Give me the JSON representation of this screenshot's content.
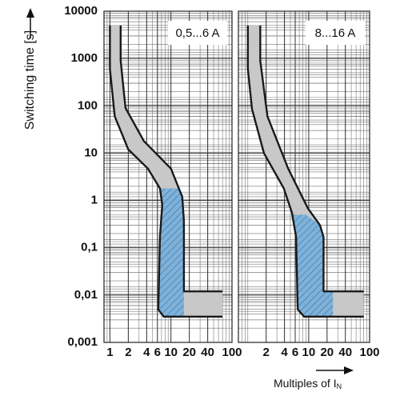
{
  "ylabel": "Switching time [s]",
  "xlabel": "Multiples of I",
  "xlabel_subscript": "N",
  "chart_data": [
    {
      "type": "line",
      "label": "0,5...6 A",
      "xscale": "log",
      "yscale": "log",
      "grid": true,
      "xlim": [
        0.8,
        100
      ],
      "xticks": [
        1,
        2,
        4,
        6,
        10,
        20,
        40,
        100
      ],
      "ylim": [
        0.001,
        10000
      ],
      "yticks": [
        10000,
        1000,
        100,
        10,
        1,
        {
          "value": 0.1,
          "label": "0,1"
        },
        {
          "value": 0.01,
          "label": "0,01"
        },
        {
          "value": 0.001,
          "label": "0,001"
        }
      ],
      "band_color": "#c8c8c8",
      "zone_color": "#7fb2da",
      "line_color": "#1a1a1a",
      "lower": {
        "x": [
          1,
          1,
          1.2,
          2,
          4.2,
          6.6,
          7.2,
          6.6,
          6.2,
          7.6,
          70
        ],
        "y": [
          5000,
          600,
          60,
          12,
          4.7,
          1.8,
          0.81,
          0.17,
          0.005,
          0.0035,
          0.0035
        ]
      },
      "upper": {
        "x": [
          1.5,
          1.5,
          1.8,
          3.6,
          10,
          15.3,
          16.3,
          16.3,
          70
        ],
        "y": [
          5000,
          900,
          90,
          18,
          4.7,
          1.2,
          0.37,
          0.012,
          0.012
        ]
      },
      "zone": {
        "x": [
          6.6,
          14,
          15.3,
          16.3,
          16.3,
          7.6,
          6.2,
          6.6,
          7.2
        ],
        "y": [
          1.8,
          1.8,
          1.2,
          0.37,
          0.0035,
          0.0035,
          0.005,
          0.17,
          0.81
        ]
      }
    },
    {
      "type": "line",
      "label": "8...16 A",
      "xscale": "log",
      "yscale": "log",
      "grid": true,
      "xlim": [
        0.7,
        100
      ],
      "xticks": [
        2,
        4,
        6,
        10,
        20,
        40,
        100
      ],
      "ylim": [
        0.001,
        10000
      ],
      "yticks": [
        10000,
        1000,
        100,
        10,
        1,
        0.1,
        0.01,
        0.001
      ],
      "band_color": "#c8c8c8",
      "zone_color": "#7fb2da",
      "line_color": "#1a1a1a",
      "lower": {
        "x": [
          1,
          1,
          1.17,
          1.84,
          3.9,
          5.3,
          6.2,
          6.6,
          8.4,
          80
        ],
        "y": [
          5000,
          600,
          86,
          10,
          1.8,
          0.55,
          0.17,
          0.005,
          0.0035,
          0.0035
        ]
      },
      "upper": {
        "x": [
          1.6,
          1.6,
          2.1,
          4.6,
          9.7,
          15.3,
          17.5,
          17.5,
          80
        ],
        "y": [
          5000,
          900,
          60,
          4.7,
          0.68,
          0.3,
          0.17,
          0.012,
          0.012
        ]
      },
      "zone": {
        "x": [
          5.3,
          9,
          15.3,
          17.5,
          17.5,
          25,
          25,
          8.4,
          6.6,
          6.2
        ],
        "y": [
          0.5,
          0.5,
          0.3,
          0.17,
          0.012,
          0.012,
          0.0035,
          0.0035,
          0.005,
          0.17
        ]
      }
    }
  ]
}
